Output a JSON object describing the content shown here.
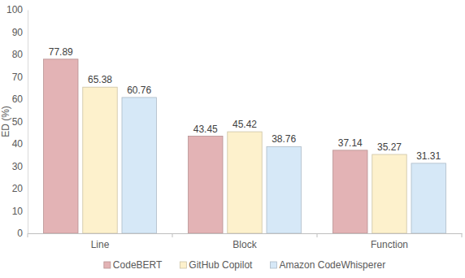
{
  "chart_data": {
    "type": "bar",
    "y_label": "ED (%)",
    "categories": [
      "Line",
      "Block",
      "Function"
    ],
    "series": [
      {
        "name": "CodeBERT",
        "color": "#e3b3b5",
        "values": [
          77.89,
          43.45,
          37.14
        ]
      },
      {
        "name": "GitHub Copilot",
        "color": "#fdf1cc",
        "values": [
          65.38,
          45.42,
          35.27
        ]
      },
      {
        "name": "Amazon CodeWhisperer",
        "color": "#d6e8f7",
        "values": [
          60.76,
          38.76,
          31.31
        ]
      }
    ],
    "ylim": [
      0,
      100
    ],
    "yticks": [
      0,
      10,
      20,
      30,
      40,
      50,
      60,
      70,
      80,
      90,
      100
    ],
    "grid": false,
    "data_labels": true,
    "legend": "bottom"
  }
}
